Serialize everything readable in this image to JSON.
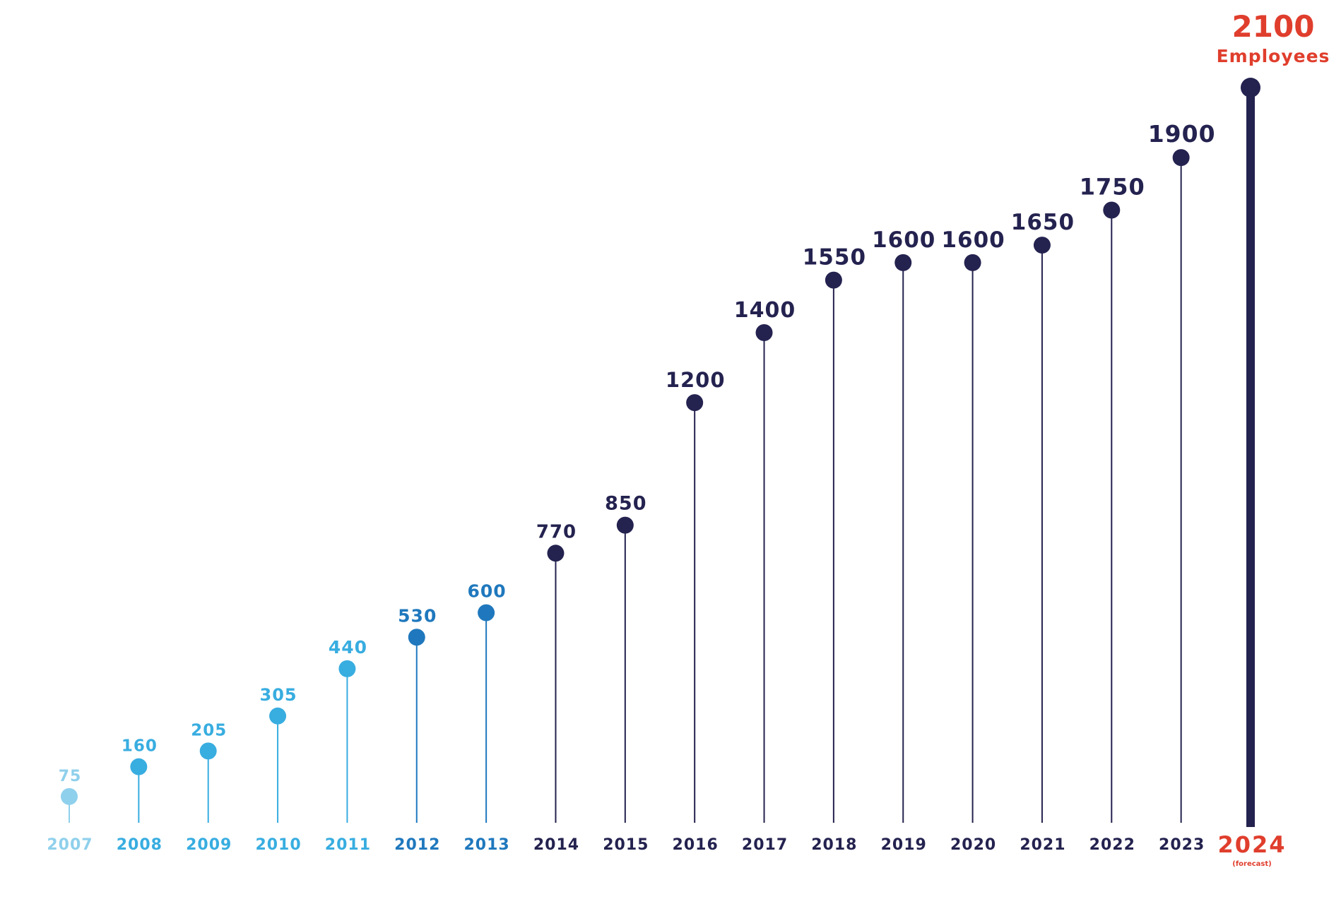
{
  "colors": {
    "light": "#8fd0ec",
    "sky": "#38ade0",
    "mid": "#1f78bd",
    "navy": "#24224f",
    "accent": "#e03e2d"
  },
  "chart_data": {
    "type": "lollipop",
    "xlabel": "",
    "ylabel": "",
    "ylim": [
      0,
      2100
    ],
    "grid": false,
    "legend": "none",
    "points": [
      {
        "year": "2007",
        "value": 75,
        "label": "75",
        "tone": "light"
      },
      {
        "year": "2008",
        "value": 160,
        "label": "160",
        "tone": "sky"
      },
      {
        "year": "2009",
        "value": 205,
        "label": "205",
        "tone": "sky"
      },
      {
        "year": "2010",
        "value": 305,
        "label": "305",
        "tone": "sky"
      },
      {
        "year": "2011",
        "value": 440,
        "label": "440",
        "tone": "sky"
      },
      {
        "year": "2012",
        "value": 530,
        "label": "530",
        "tone": "mid"
      },
      {
        "year": "2013",
        "value": 600,
        "label": "600",
        "tone": "mid"
      },
      {
        "year": "2014",
        "value": 770,
        "label": "770",
        "tone": "navy"
      },
      {
        "year": "2015",
        "value": 850,
        "label": "850",
        "tone": "navy"
      },
      {
        "year": "2016",
        "value": 1200,
        "label": "1200",
        "tone": "navy"
      },
      {
        "year": "2017",
        "value": 1400,
        "label": "1400",
        "tone": "navy"
      },
      {
        "year": "2018",
        "value": 1550,
        "label": "1550",
        "tone": "navy"
      },
      {
        "year": "2019",
        "value": 1600,
        "label": "1600",
        "tone": "navy"
      },
      {
        "year": "2020",
        "value": 1600,
        "label": "1600",
        "tone": "navy"
      },
      {
        "year": "2021",
        "value": 1650,
        "label": "1650",
        "tone": "navy"
      },
      {
        "year": "2022",
        "value": 1750,
        "label": "1750",
        "tone": "navy"
      },
      {
        "year": "2023",
        "value": 1900,
        "label": "1900",
        "tone": "navy"
      },
      {
        "year": "2024",
        "value": 2100,
        "label": "2100",
        "tone": "navy",
        "note": "(forecast)",
        "unit": "Employees",
        "highlight": true
      }
    ]
  }
}
